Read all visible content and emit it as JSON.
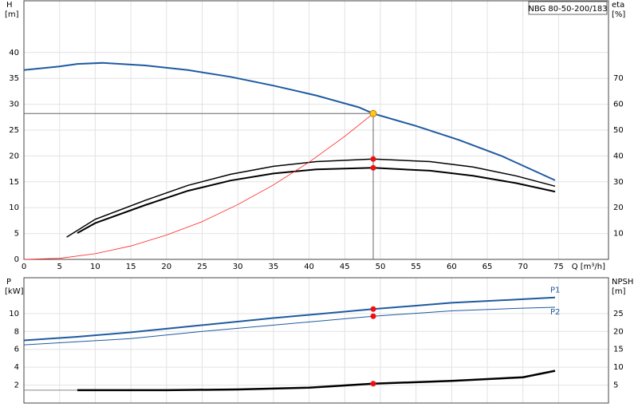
{
  "chart_data": [
    {
      "type": "line",
      "model": "NBG 80-50-200/183",
      "ylabel": "H",
      "yunit": "[m]",
      "y2label": "eta",
      "y2unit": "[%]",
      "xlabel": "Q [m³/h]",
      "xlim": [
        0,
        82
      ],
      "xticks": [
        0,
        5,
        10,
        15,
        20,
        25,
        30,
        35,
        40,
        45,
        50,
        55,
        60,
        65,
        70,
        75
      ],
      "ylim": [
        0,
        50
      ],
      "yticks": [
        0,
        5,
        10,
        15,
        20,
        25,
        30,
        35,
        40
      ],
      "y2lim": [
        0,
        100
      ],
      "y2ticks": [
        10,
        20,
        30,
        40,
        50,
        60,
        70
      ],
      "grid": true,
      "series": [
        {
          "color": "#1f5aa0",
          "x": [
            0,
            5,
            7.5,
            11,
            17,
            23,
            29,
            35,
            41,
            47,
            49,
            55,
            61,
            67,
            74.5
          ],
          "values": [
            36.6,
            37.3,
            37.8,
            38,
            37.5,
            36.6,
            35.3,
            33.6,
            31.7,
            29.4,
            28.2,
            25.8,
            23.1,
            20,
            15.3
          ]
        },
        {
          "color": "#000000",
          "axis": "y2",
          "x": [
            6,
            10,
            17,
            23,
            29,
            35,
            41,
            49,
            57,
            63,
            69,
            74.5
          ],
          "values": [
            8.6,
            15.5,
            22.8,
            28.6,
            32.9,
            36,
            37.8,
            38.8,
            37.8,
            35.7,
            32.3,
            28.3
          ]
        },
        {
          "color": "#000000",
          "axis": "y2",
          "x": [
            7.5,
            10,
            17,
            23,
            29,
            35,
            41,
            49,
            57,
            63,
            69,
            74.5
          ],
          "values": [
            10.2,
            14,
            21,
            26.5,
            30.5,
            33.2,
            34.8,
            35.4,
            34.3,
            32.3,
            29.5,
            26.2
          ]
        },
        {
          "color": "#ff2020",
          "x": [
            0,
            5,
            10,
            15,
            20,
            25,
            30,
            35,
            40,
            45,
            49
          ],
          "values": [
            0,
            0.2,
            1.1,
            2.6,
            4.7,
            7.3,
            10.6,
            14.4,
            18.8,
            23.8,
            28.2
          ]
        }
      ],
      "duty_point": {
        "x": 49,
        "y": 28.2,
        "color": "#ffc820"
      },
      "markers": [
        {
          "x": 49,
          "y": 38.8,
          "axis": "y2",
          "color": "#ee1111"
        },
        {
          "x": 49,
          "y": 35.4,
          "axis": "y2",
          "color": "#ee1111"
        }
      ]
    },
    {
      "type": "line",
      "ylabel": "P",
      "yunit": "[kW]",
      "y2label": "NPSH",
      "y2unit": "[m]",
      "xlim": [
        0,
        82
      ],
      "ylim": [
        0,
        14
      ],
      "yticks": [
        2,
        4,
        6,
        8,
        10
      ],
      "y2lim": [
        0,
        35
      ],
      "y2ticks": [
        5,
        10,
        15,
        20,
        25
      ],
      "grid": true,
      "series": [
        {
          "name": "P1",
          "color": "#1f5aa0",
          "x": [
            0,
            7.5,
            15,
            25,
            35,
            49,
            60,
            70,
            74.5
          ],
          "values": [
            7,
            7.4,
            7.9,
            8.7,
            9.5,
            10.5,
            11.2,
            11.6,
            11.8
          ]
        },
        {
          "name": "P2",
          "color": "#1f5aa0",
          "x": [
            0,
            15,
            25,
            35,
            49,
            60,
            70,
            74.5
          ],
          "values": [
            6.5,
            7.2,
            8,
            8.7,
            9.7,
            10.3,
            10.6,
            10.7
          ]
        },
        {
          "color": "#000000",
          "axis": "y2",
          "x": [
            7.5,
            20,
            30,
            40,
            49,
            60,
            70,
            74.5
          ],
          "values": [
            3.6,
            3.6,
            3.8,
            4.3,
            5.4,
            6.2,
            7.2,
            9
          ]
        },
        {
          "color": "#888888",
          "axis": "y2",
          "x": [
            0,
            7.5
          ],
          "values": [
            3.6,
            3.6
          ]
        }
      ],
      "markers": [
        {
          "x": 49,
          "y": 10.5,
          "color": "#ee1111"
        },
        {
          "x": 49,
          "y": 9.7,
          "color": "#ee1111"
        },
        {
          "x": 49,
          "y": 5.4,
          "axis": "y2",
          "color": "#ee1111"
        }
      ]
    }
  ]
}
